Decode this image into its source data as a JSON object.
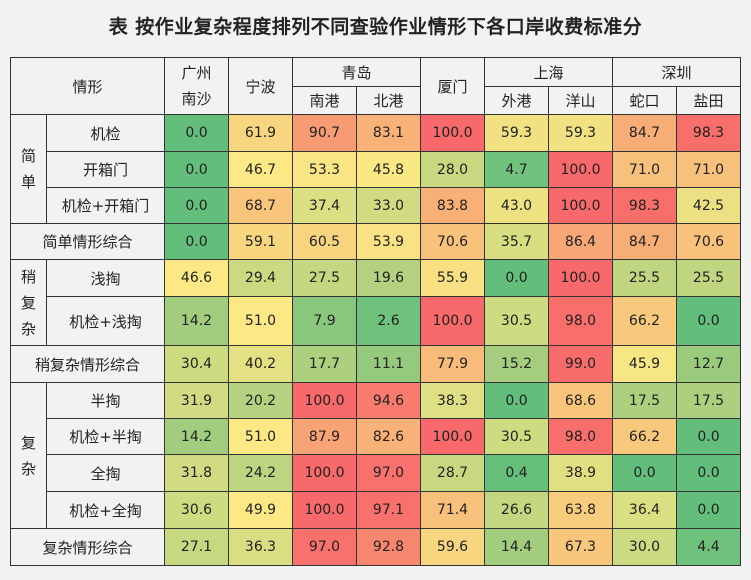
{
  "title": "表  按作业复杂程度排列不同查验作业情形下各口岸收费标准分",
  "header": {
    "situation": "情形",
    "ports": {
      "guangzhou": "广州",
      "nansha": "南沙",
      "ningbo": "宁波",
      "qingdao": "青岛",
      "nangang": "南港",
      "beigang": "北港",
      "xiamen": "厦门",
      "shanghai": "上海",
      "waigang": "外港",
      "yangshan": "洋山",
      "shenzhen": "深圳",
      "shekou": "蛇口",
      "yantian": "盐田"
    }
  },
  "groups": {
    "simple": [
      "简",
      "单"
    ],
    "semi": [
      "稍",
      "复",
      "杂"
    ],
    "complex": [
      "复",
      "杂"
    ]
  },
  "rows": [
    {
      "label": "机检",
      "values": [
        "0.0",
        "61.9",
        "90.7",
        "83.1",
        "100.0",
        "59.3",
        "59.3",
        "84.7",
        "98.3"
      ],
      "colors": [
        "#63be7b",
        "#f8d67f",
        "#f79b74",
        "#f8b177",
        "#f8696b",
        "#f1e182",
        "#f1e182",
        "#f7ad76",
        "#f86e6b"
      ]
    },
    {
      "label": "开箱门",
      "values": [
        "0.0",
        "46.7",
        "53.3",
        "45.8",
        "28.0",
        "4.7",
        "100.0",
        "71.0",
        "71.0"
      ],
      "colors": [
        "#63be7b",
        "#fce985",
        "#f9e583",
        "#f9e884",
        "#c7d881",
        "#70c27c",
        "#f8696b",
        "#f8c17b",
        "#f8c17b"
      ]
    },
    {
      "label": "机检+开箱门",
      "values": [
        "0.0",
        "68.7",
        "37.4",
        "33.0",
        "83.8",
        "43.0",
        "100.0",
        "98.3",
        "42.5"
      ],
      "colors": [
        "#63be7b",
        "#f8c57b",
        "#dadf83",
        "#d1dc82",
        "#f8b077",
        "#ede282",
        "#f8696b",
        "#f86e6b",
        "#ebe182"
      ]
    },
    {
      "label": "简单情形综合",
      "values": [
        "0.0",
        "59.1",
        "60.5",
        "53.9",
        "70.6",
        "35.7",
        "86.4",
        "84.7",
        "70.6"
      ],
      "colors": [
        "#63be7b",
        "#f8d67f",
        "#f8d47f",
        "#f9e283",
        "#f8c27b",
        "#d7de82",
        "#f7a675",
        "#f7ad76",
        "#f8c27b"
      ]
    },
    {
      "label": "浅掏",
      "values": [
        "46.6",
        "29.4",
        "27.5",
        "19.6",
        "55.9",
        "0.0",
        "100.0",
        "25.5",
        "25.5"
      ],
      "colors": [
        "#fce985",
        "#cbd981",
        "#c5d780",
        "#b3d17f",
        "#f9e083",
        "#63be7b",
        "#f8696b",
        "#c0d580",
        "#c0d580"
      ]
    },
    {
      "label": "机检+浅掏",
      "values": [
        "14.2",
        "51.0",
        "7.9",
        "2.6",
        "100.0",
        "30.5",
        "98.0",
        "66.2",
        "0.0"
      ],
      "colors": [
        "#a3cd7e",
        "#fce985",
        "#88c77c",
        "#6fc27b",
        "#f8696b",
        "#cddb81",
        "#f86e6b",
        "#f8c87c",
        "#63be7b"
      ]
    },
    {
      "label": "稍复杂情形综合",
      "values": [
        "30.4",
        "40.2",
        "17.7",
        "11.1",
        "77.9",
        "15.2",
        "99.0",
        "45.9",
        "12.7"
      ],
      "colors": [
        "#cddb81",
        "#e4e182",
        "#acd07e",
        "#95c97d",
        "#f8bb79",
        "#a4ce7e",
        "#f86b6b",
        "#f7e784",
        "#9acb7d"
      ]
    },
    {
      "label": "半掏",
      "values": [
        "31.9",
        "20.2",
        "100.0",
        "94.6",
        "38.3",
        "0.0",
        "68.6",
        "17.5",
        "17.5"
      ],
      "colors": [
        "#d1dc82",
        "#b4d27f",
        "#f8696b",
        "#f87b6d",
        "#dfe083",
        "#63be7b",
        "#f8c57b",
        "#acd07e",
        "#acd07e"
      ]
    },
    {
      "label": "机检+半掏",
      "values": [
        "14.2",
        "51.0",
        "87.9",
        "82.6",
        "100.0",
        "30.5",
        "98.0",
        "66.2",
        "0.0"
      ],
      "colors": [
        "#a3cd7e",
        "#fce985",
        "#f7a375",
        "#f8b177",
        "#f8696b",
        "#cddb81",
        "#f86e6b",
        "#f8c87c",
        "#63be7b"
      ]
    },
    {
      "label": "全掏",
      "values": [
        "31.8",
        "24.2",
        "100.0",
        "97.0",
        "28.7",
        "0.4",
        "38.9",
        "0.0",
        "0.0"
      ],
      "colors": [
        "#d1dc82",
        "#bdd480",
        "#f8696b",
        "#f8716c",
        "#c8d881",
        "#65bf7b",
        "#e0e083",
        "#63be7b",
        "#63be7b"
      ]
    },
    {
      "label": "机检+全掏",
      "values": [
        "30.6",
        "49.9",
        "100.0",
        "97.1",
        "71.4",
        "26.6",
        "63.8",
        "36.4",
        "0.0"
      ],
      "colors": [
        "#cddb81",
        "#fce985",
        "#f8696b",
        "#f8716c",
        "#f8c17b",
        "#c3d680",
        "#f8cc7d",
        "#dadf83",
        "#63be7b"
      ]
    },
    {
      "label": "复杂情形综合",
      "values": [
        "27.1",
        "36.3",
        "97.0",
        "92.8",
        "59.6",
        "14.4",
        "67.3",
        "30.0",
        "4.4"
      ],
      "colors": [
        "#c6d880",
        "#d9de82",
        "#f8716c",
        "#f7866f",
        "#f8d57f",
        "#a2cd7e",
        "#f8c77c",
        "#ccda81",
        "#6fc27c"
      ]
    }
  ]
}
